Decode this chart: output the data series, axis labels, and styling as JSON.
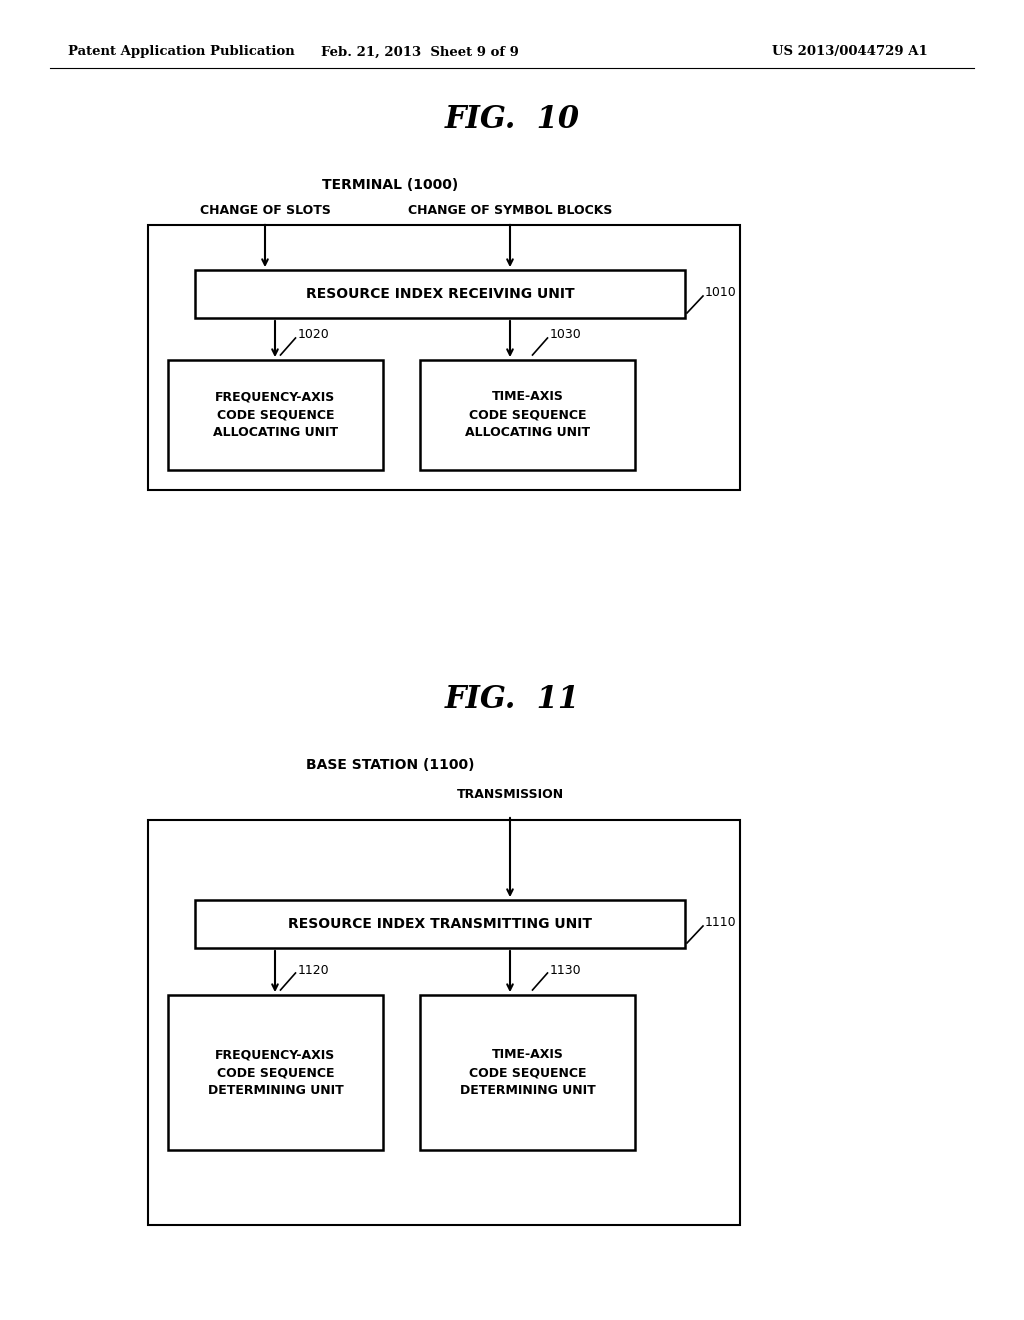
{
  "bg_color": "#ffffff",
  "text_color": "#000000",
  "box_edge_color": "#000000",
  "line_color": "#000000",
  "header_left": "Patent Application Publication",
  "header_center": "Feb. 21, 2013  Sheet 9 of 9",
  "header_right": "US 2013/0044729 A1",
  "fig10_title": "FIG.  10",
  "fig10_terminal_label": "TERMINAL (1000)",
  "fig10_change_slots": "CHANGE OF SLOTS",
  "fig10_change_symbol": "CHANGE OF SYMBOL BLOCKS",
  "fig10_box1010_label": "RESOURCE INDEX RECEIVING UNIT",
  "fig10_box1010_ref": "1010",
  "fig10_box1020_label": "FREQUENCY-AXIS\nCODE SEQUENCE\nALLOCATING UNIT",
  "fig10_box1020_ref": "1020",
  "fig10_box1030_label": "TIME-AXIS\nCODE SEQUENCE\nALLOCATING UNIT",
  "fig10_box1030_ref": "1030",
  "fig11_title": "FIG.  11",
  "fig11_base_label": "BASE STATION (1100)",
  "fig11_transmission": "TRANSMISSION",
  "fig11_box1110_label": "RESOURCE INDEX TRANSMITTING UNIT",
  "fig11_box1110_ref": "1110",
  "fig11_box1120_label": "FREQUENCY-AXIS\nCODE SEQUENCE\nDETERMINING UNIT",
  "fig11_box1120_ref": "1120",
  "fig11_box1130_label": "TIME-AXIS\nCODE SEQUENCE\nDETERMINING UNIT",
  "fig11_box1130_ref": "1130"
}
